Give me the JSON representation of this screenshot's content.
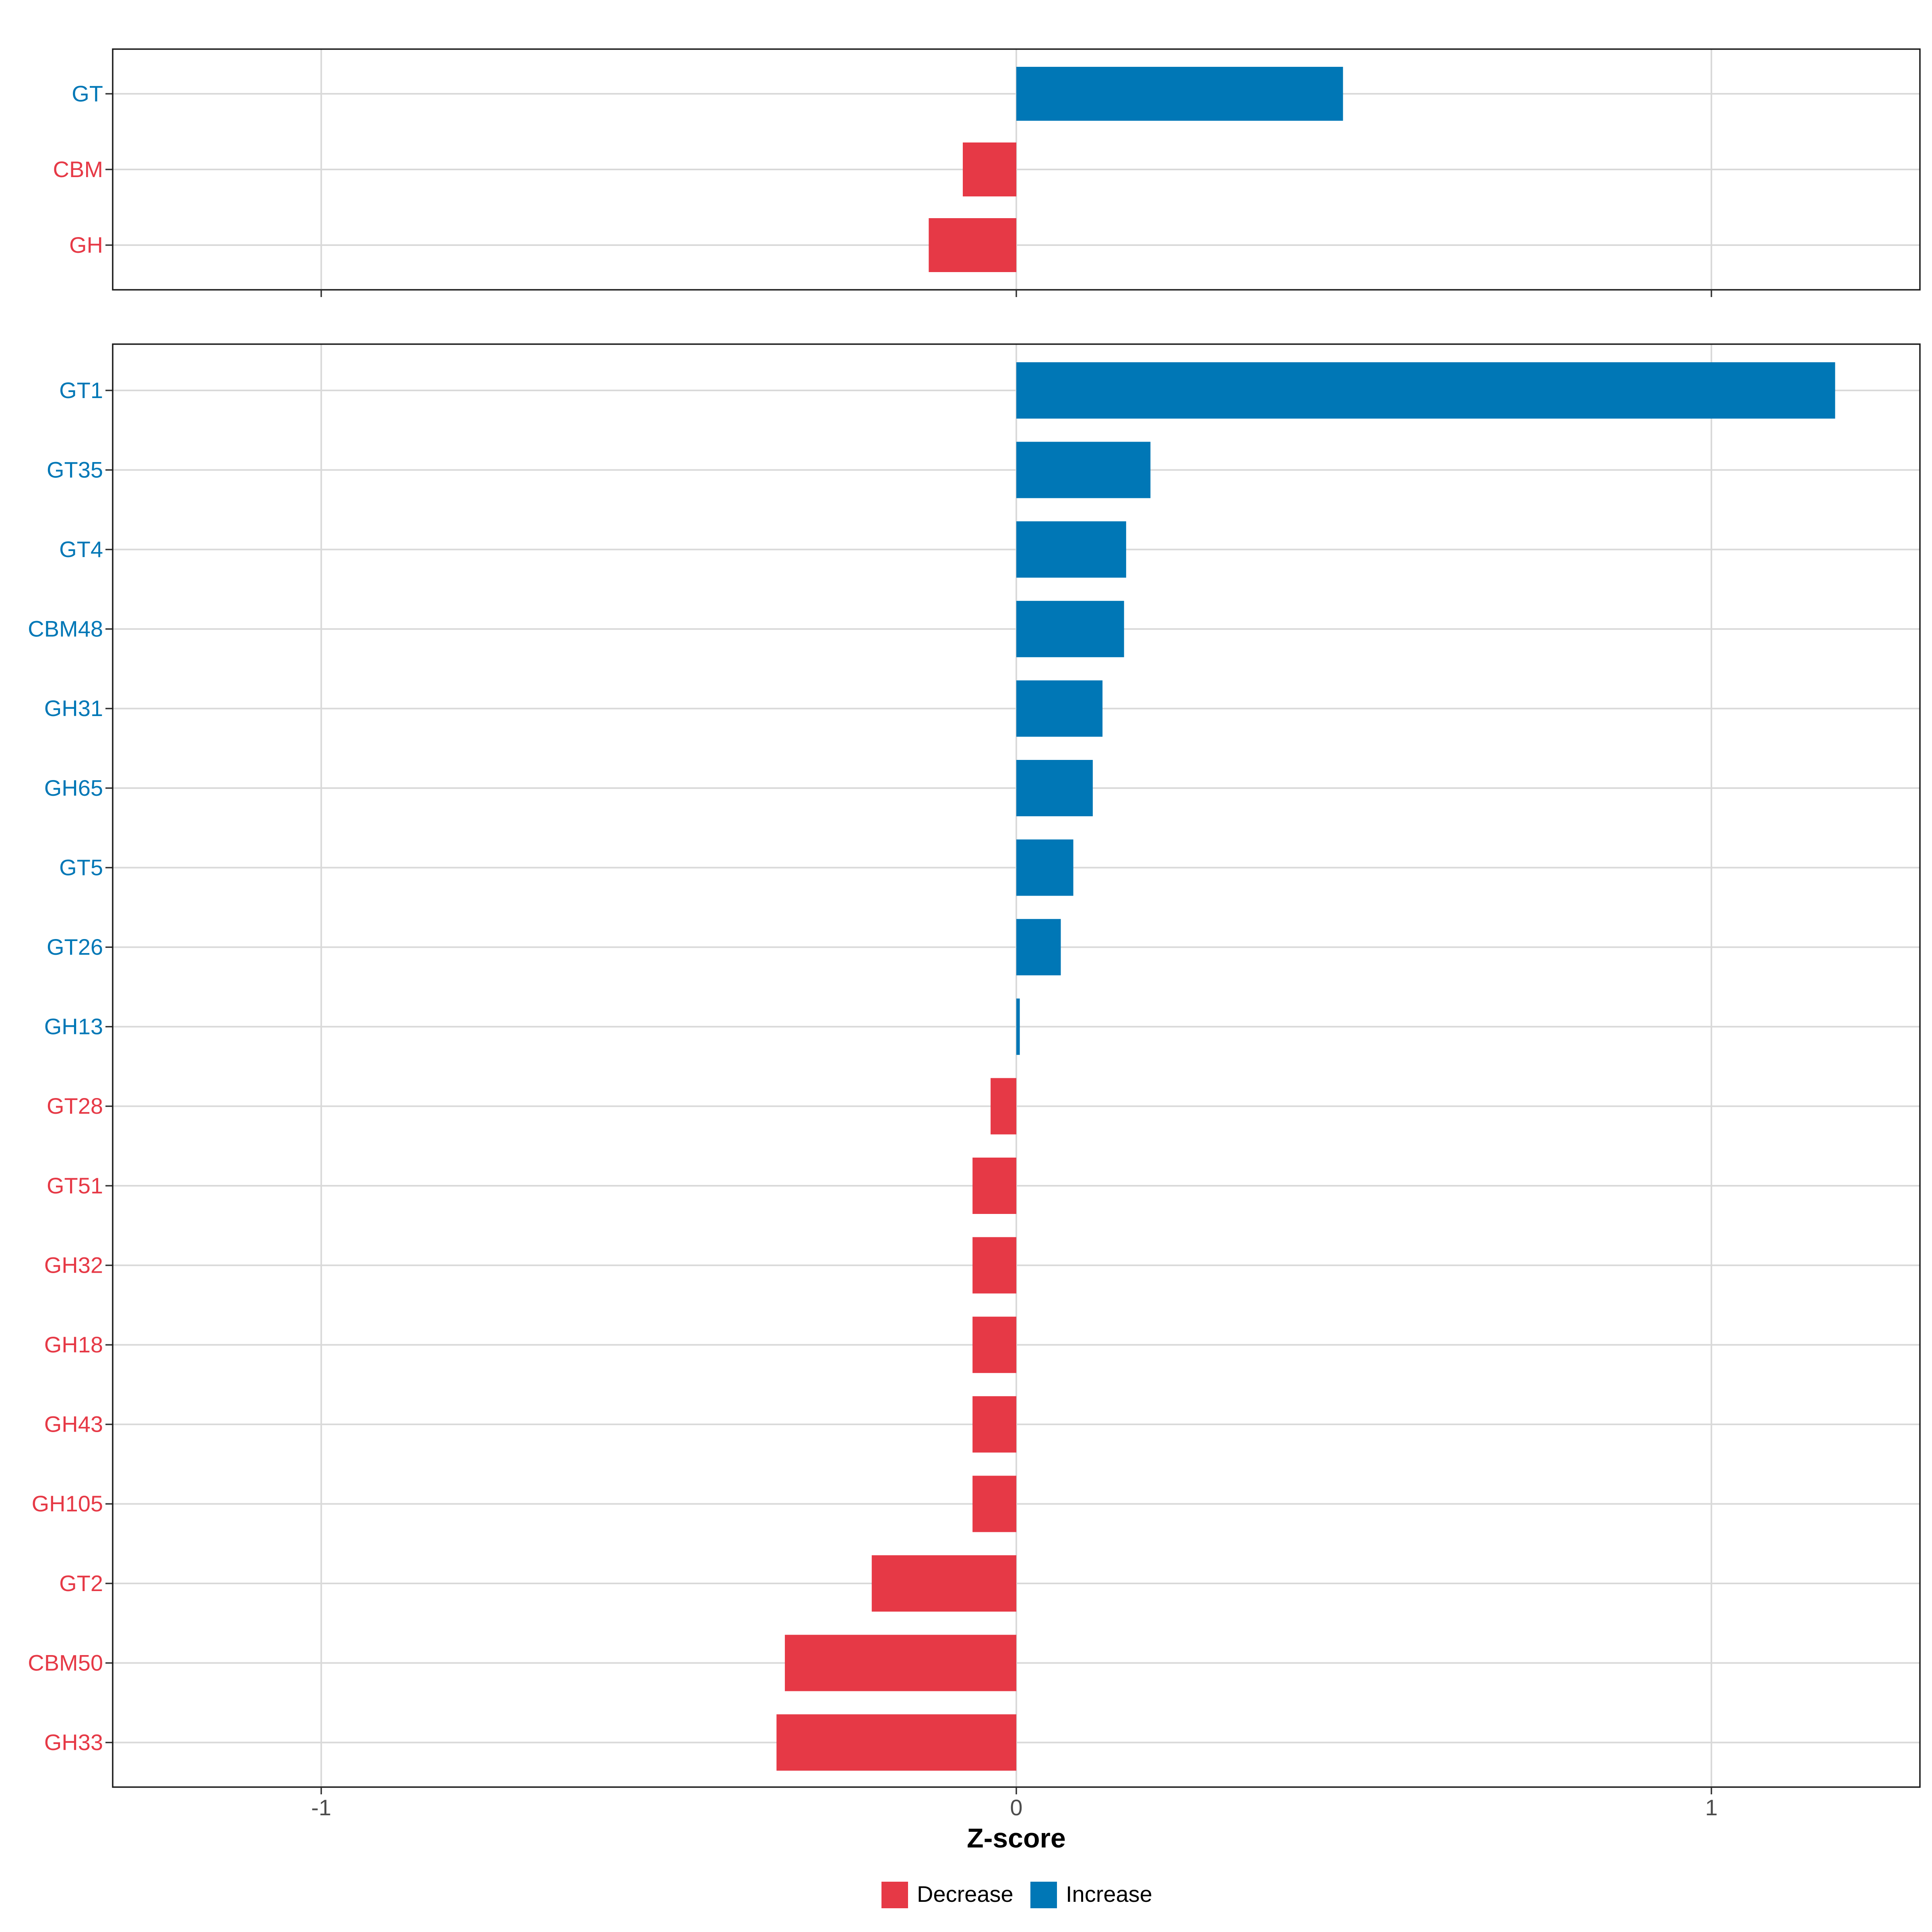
{
  "chart_data": {
    "type": "bar",
    "orientation": "horizontal",
    "xlabel": "Z-score",
    "xlim": [
      -1.3,
      1.3
    ],
    "xticks": [
      -1,
      0,
      1
    ],
    "xtick_labels": [
      "-1",
      "0",
      "1"
    ],
    "grid": true,
    "panels": [
      {
        "name": "class",
        "categories": [
          "GT",
          "CBM",
          "GH"
        ],
        "values": [
          0.47,
          -0.077,
          -0.126
        ],
        "direction": [
          "Increase",
          "Decrease",
          "Decrease"
        ]
      },
      {
        "name": "family",
        "categories": [
          "GT1",
          "GT35",
          "GT4",
          "CBM48",
          "GH31",
          "GH65",
          "GT5",
          "GT26",
          "GH13",
          "GT28",
          "GT51",
          "GH32",
          "GH18",
          "GH43",
          "GH105",
          "GT2",
          "CBM50",
          "GH33"
        ],
        "values": [
          1.178,
          0.193,
          0.158,
          0.155,
          0.124,
          0.11,
          0.082,
          0.064,
          0.005,
          -0.037,
          -0.063,
          -0.063,
          -0.063,
          -0.063,
          -0.063,
          -0.208,
          -0.333,
          -0.345
        ],
        "direction": [
          "Increase",
          "Increase",
          "Increase",
          "Increase",
          "Increase",
          "Increase",
          "Increase",
          "Increase",
          "Increase",
          "Decrease",
          "Decrease",
          "Decrease",
          "Decrease",
          "Decrease",
          "Decrease",
          "Decrease",
          "Decrease",
          "Decrease"
        ]
      }
    ],
    "legend": {
      "placement": "bottom",
      "items": [
        {
          "label": "Decrease",
          "color": "#E63946"
        },
        {
          "label": "Increase",
          "color": "#0077B6"
        }
      ]
    },
    "colors": {
      "Increase": "#0077B6",
      "Decrease": "#E63946"
    }
  }
}
